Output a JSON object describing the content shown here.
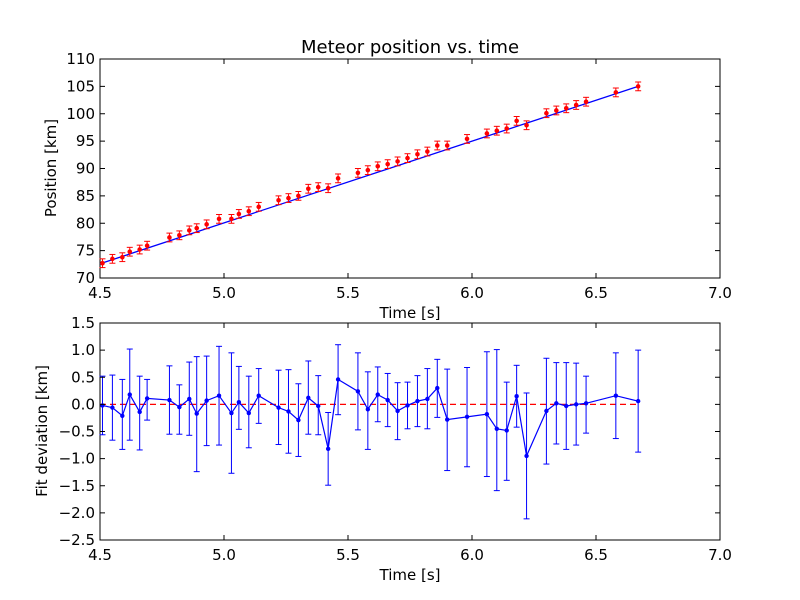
{
  "chart_data": [
    {
      "type": "scatter",
      "title": "Meteor position vs. time",
      "xlabel": "Time [s]",
      "ylabel": "Position [km]",
      "xlim": [
        4.5,
        7.0
      ],
      "ylim": [
        70,
        110
      ],
      "xticks": [
        "4.5",
        "5.0",
        "5.5",
        "6.0",
        "6.5",
        "7.0"
      ],
      "yticks": [
        "70",
        "75",
        "80",
        "85",
        "90",
        "95",
        "100",
        "105",
        "110"
      ],
      "grid": false,
      "colors": {
        "points": "#ff0000",
        "errorbars": "#ff0000",
        "fit": "#0000ff"
      },
      "fit_line": {
        "x": [
          4.5,
          6.67
        ],
        "y": [
          72.6,
          105.0
        ]
      },
      "series": [
        {
          "x": [
            4.51,
            4.55,
            4.59,
            4.62,
            4.66,
            4.69,
            4.78,
            4.82,
            4.86,
            4.89,
            4.93,
            4.98,
            5.03,
            5.06,
            5.1,
            5.14,
            5.22,
            5.26,
            5.3,
            5.34,
            5.38,
            5.42,
            5.46,
            5.54,
            5.58,
            5.62,
            5.66,
            5.7,
            5.74,
            5.78,
            5.82,
            5.86,
            5.9,
            5.98,
            6.06,
            6.1,
            6.14,
            6.18,
            6.22,
            6.3,
            6.34,
            6.38,
            6.42,
            6.46,
            6.58,
            6.67
          ],
          "y": [
            72.7,
            73.5,
            73.8,
            74.8,
            75.2,
            75.9,
            77.4,
            77.8,
            78.7,
            79.1,
            79.8,
            80.8,
            80.8,
            81.7,
            82.2,
            83.0,
            84.2,
            84.6,
            85.0,
            86.3,
            86.6,
            86.4,
            88.2,
            89.2,
            89.7,
            90.4,
            90.8,
            91.3,
            91.9,
            92.6,
            93.1,
            94.2,
            94.2,
            95.4,
            96.4,
            96.9,
            97.3,
            98.7,
            97.9,
            100.1,
            100.6,
            101.0,
            101.6,
            102.2,
            103.9,
            105.0
          ],
          "error": 0.8
        }
      ]
    },
    {
      "type": "line",
      "xlabel": "Time [s]",
      "ylabel": "Fit deviation [km]",
      "xlim": [
        4.5,
        7.0
      ],
      "ylim": [
        -2.5,
        1.5
      ],
      "xticks": [
        "4.5",
        "5.0",
        "5.5",
        "6.0",
        "6.5",
        "7.0"
      ],
      "yticks": [
        "−2.5",
        "−2.0",
        "−1.5",
        "−1.0",
        "−0.5",
        "0.0",
        "0.5",
        "1.0",
        "1.5"
      ],
      "grid": false,
      "zero_line": {
        "y": 0,
        "style": "dashed",
        "color": "#ff0000"
      },
      "colors": {
        "line": "#0000ff",
        "errorbars": "#0000ff"
      },
      "series": [
        {
          "x": [
            4.51,
            4.55,
            4.59,
            4.62,
            4.66,
            4.69,
            4.78,
            4.82,
            4.86,
            4.89,
            4.93,
            4.98,
            5.03,
            5.06,
            5.1,
            5.14,
            5.22,
            5.26,
            5.3,
            5.34,
            5.38,
            5.42,
            5.46,
            5.54,
            5.58,
            5.62,
            5.66,
            5.7,
            5.74,
            5.78,
            5.82,
            5.86,
            5.9,
            5.98,
            6.06,
            6.1,
            6.14,
            6.18,
            6.22,
            6.3,
            6.34,
            6.38,
            6.42,
            6.46,
            6.58,
            6.67
          ],
          "y": [
            -0.02,
            -0.06,
            -0.21,
            0.18,
            -0.14,
            0.11,
            0.08,
            -0.05,
            0.1,
            -0.17,
            0.07,
            0.16,
            -0.16,
            0.04,
            -0.16,
            0.16,
            -0.06,
            -0.13,
            -0.29,
            0.12,
            -0.03,
            -0.82,
            0.46,
            0.24,
            -0.09,
            0.18,
            0.08,
            -0.12,
            -0.02,
            0.06,
            0.1,
            0.3,
            -0.28,
            -0.23,
            -0.18,
            -0.45,
            -0.48,
            0.15,
            -0.95,
            -0.12,
            0.02,
            -0.03,
            0.0,
            0.02,
            0.16,
            0.06
          ],
          "error_up": [
            0.54,
            0.6,
            0.67,
            0.84,
            0.66,
            0.35,
            0.63,
            0.41,
            0.68,
            1.05,
            0.82,
            0.91,
            1.11,
            0.66,
            0.68,
            0.5,
            0.69,
            0.77,
            0.67,
            0.68,
            0.56,
            0.67,
            0.64,
            0.71,
            0.69,
            0.51,
            0.49,
            0.52,
            0.43,
            0.47,
            0.56,
            0.53,
            0.93,
            0.91,
            1.15,
            1.46,
            0.89,
            0.57,
            1.16,
            0.97,
            0.75,
            0.8,
            0.76,
            0.5,
            0.79,
            0.94
          ],
          "error_down": [
            0.54,
            0.6,
            0.62,
            0.84,
            0.7,
            0.4,
            0.63,
            0.5,
            0.67,
            1.07,
            0.83,
            0.91,
            1.11,
            0.5,
            0.64,
            0.51,
            0.68,
            0.77,
            0.67,
            0.67,
            0.53,
            0.67,
            0.65,
            0.71,
            0.74,
            0.5,
            0.49,
            0.53,
            0.43,
            0.47,
            0.55,
            0.54,
            0.94,
            0.92,
            1.15,
            1.14,
            0.92,
            0.57,
            1.16,
            0.98,
            0.75,
            0.8,
            0.75,
            0.55,
            0.79,
            0.94
          ]
        }
      ]
    }
  ]
}
